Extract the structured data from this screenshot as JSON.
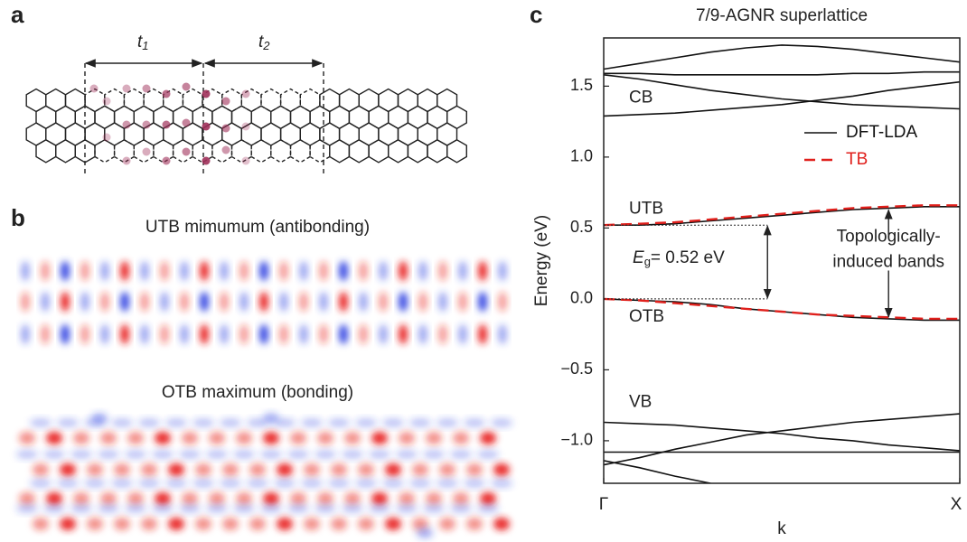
{
  "panel_a": {
    "label": "a",
    "t1": {
      "main": "t",
      "sub": "1"
    },
    "t2": {
      "main": "t",
      "sub": "2"
    }
  },
  "panel_b": {
    "label": "b",
    "top_caption": "UTB mimumum (antibonding)",
    "bottom_caption": "OTB maximum (bonding)"
  },
  "panel_c": {
    "label": "c"
  },
  "chart_data": {
    "type": "line",
    "title": "7/9-AGNR superlattice",
    "ylabel": "Energy (eV)",
    "xlabel": "k",
    "x": [
      0,
      0.1,
      0.2,
      0.3,
      0.4,
      0.5,
      0.6,
      0.7,
      0.8,
      0.9,
      1
    ],
    "xlim": [
      0,
      1
    ],
    "xticks": [
      {
        "value": 0,
        "label": "Γ"
      },
      {
        "value": 1,
        "label": "X"
      }
    ],
    "ylim": [
      -1.3,
      1.84
    ],
    "yticks": [
      1.5,
      {
        "value": 1,
        "label": "1.0"
      },
      0.5,
      {
        "value": 0,
        "label": "0.0"
      },
      {
        "value": -0.5,
        "label": "−0.5"
      },
      {
        "value": -1,
        "label": "−1.0"
      }
    ],
    "legend": "upper right",
    "series": [
      {
        "name": "DFT-LDA",
        "color": "#111111",
        "dashed": false,
        "bands": [
          [
            1.62,
            1.66,
            1.7,
            1.74,
            1.77,
            1.79,
            1.78,
            1.76,
            1.73,
            1.7,
            1.67
          ],
          [
            1.59,
            1.59,
            1.58,
            1.58,
            1.58,
            1.58,
            1.58,
            1.59,
            1.59,
            1.6,
            1.6
          ],
          [
            1.58,
            1.55,
            1.51,
            1.47,
            1.44,
            1.41,
            1.39,
            1.37,
            1.36,
            1.35,
            1.34
          ],
          [
            1.29,
            1.3,
            1.31,
            1.33,
            1.35,
            1.37,
            1.4,
            1.43,
            1.47,
            1.5,
            1.53
          ],
          [
            0.52,
            0.52,
            0.53,
            0.55,
            0.57,
            0.59,
            0.61,
            0.63,
            0.64,
            0.65,
            0.65
          ],
          [
            0.0,
            -0.01,
            -0.02,
            -0.04,
            -0.07,
            -0.09,
            -0.11,
            -0.13,
            -0.14,
            -0.15,
            -0.15
          ],
          [
            -0.87,
            -0.88,
            -0.89,
            -0.91,
            -0.93,
            -0.95,
            -0.98,
            -1.0,
            -1.03,
            -1.05,
            -1.07
          ],
          [
            -1.17,
            -1.12,
            -1.06,
            -1.01,
            -0.96,
            -0.93,
            -0.9,
            -0.87,
            -0.85,
            -0.83,
            -0.81
          ],
          [
            -1.08,
            -1.08,
            -1.08,
            -1.08,
            -1.08,
            -1.08,
            -1.08,
            -1.08,
            -1.08,
            -1.08,
            -1.08
          ],
          [
            -1.14,
            -1.19,
            -1.25,
            -1.3,
            null,
            null,
            null,
            null,
            null,
            null,
            null
          ]
        ]
      },
      {
        "name": "TB",
        "color": "#e0201c",
        "dashed": true,
        "bands": [
          [
            0.52,
            0.53,
            0.54,
            0.56,
            0.58,
            0.6,
            0.62,
            0.64,
            0.65,
            0.66,
            0.66
          ],
          [
            0.0,
            -0.01,
            -0.03,
            -0.05,
            -0.07,
            -0.09,
            -0.11,
            -0.12,
            -0.13,
            -0.14,
            -0.14
          ]
        ]
      }
    ],
    "band_labels": [
      "CB",
      "UTB",
      "OTB",
      "VB"
    ],
    "gap_label": {
      "main": "E",
      "sub": "g",
      "rest": "= 0.52 eV"
    },
    "topo_label": [
      "Topologically-",
      "induced bands"
    ]
  }
}
